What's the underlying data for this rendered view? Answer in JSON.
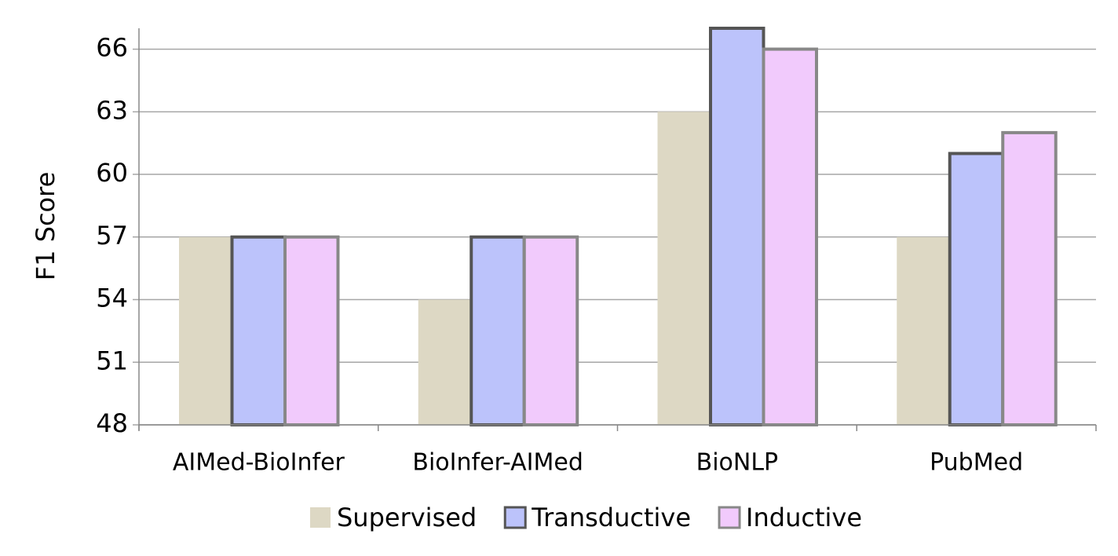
{
  "chart_data": {
    "type": "bar",
    "y_label": "F1 Score",
    "categories": [
      "AIMed-BioInfer",
      "BioInfer-AIMed",
      "BioNLP",
      "PubMed"
    ],
    "series": [
      {
        "name": "Supervised",
        "color": "#ddd8c4",
        "edgecolor": "#ddd8c4",
        "values": [
          57,
          54,
          63,
          57
        ]
      },
      {
        "name": "Transductive",
        "color": "#bcc3fb",
        "edgecolor": "#555555",
        "values": [
          57,
          57,
          67,
          61
        ]
      },
      {
        "name": "Inductive",
        "color": "#f1cafc",
        "edgecolor": "#888888",
        "values": [
          57,
          57,
          66,
          62
        ]
      }
    ],
    "ylim": [
      48,
      67
    ],
    "yticks": [
      48,
      51,
      54,
      57,
      60,
      63,
      66
    ],
    "grid": true,
    "legend": "bottom"
  }
}
